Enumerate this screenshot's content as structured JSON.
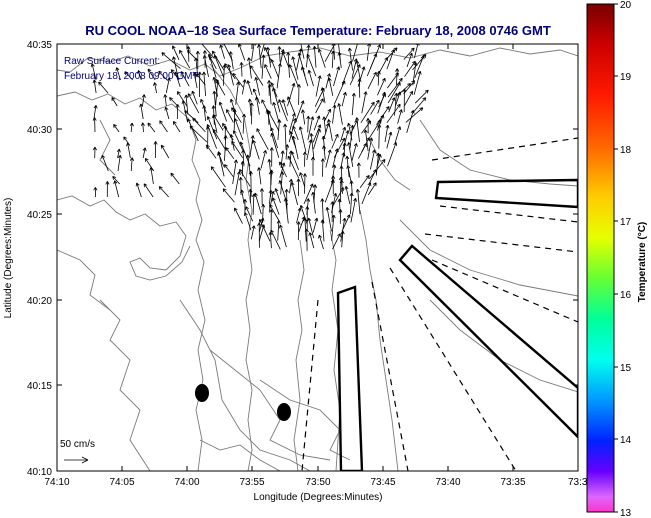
{
  "title": "RU COOL  NOAA–18  Sea Surface Temperature:  February 18, 2008 0746 GMT",
  "annotation": {
    "line1": "Raw Surface Current:",
    "line2": "February 18, 2008 09:00 GMT"
  },
  "scale_label": "50 cm/s",
  "x_axis": {
    "label": "Longitude (Degrees:Minutes)",
    "ticks": [
      "74:10",
      "74:05",
      "74:00",
      "73:55",
      "73:50",
      "73:45",
      "73:40",
      "73:35",
      "73:3"
    ]
  },
  "y_axis": {
    "label": "Latitude (Degrees:Minutes)",
    "ticks": [
      "40:35",
      "40:30",
      "40:25",
      "40:20",
      "40:15",
      "40:10"
    ]
  },
  "colorbar": {
    "label": "Temperature (°C)",
    "ticks": [
      "20",
      "19",
      "18",
      "17",
      "16",
      "15",
      "14",
      "13"
    ]
  },
  "colors": {
    "title": "#00007a",
    "frame": "#000000",
    "contour": "#7a7a7a"
  }
}
